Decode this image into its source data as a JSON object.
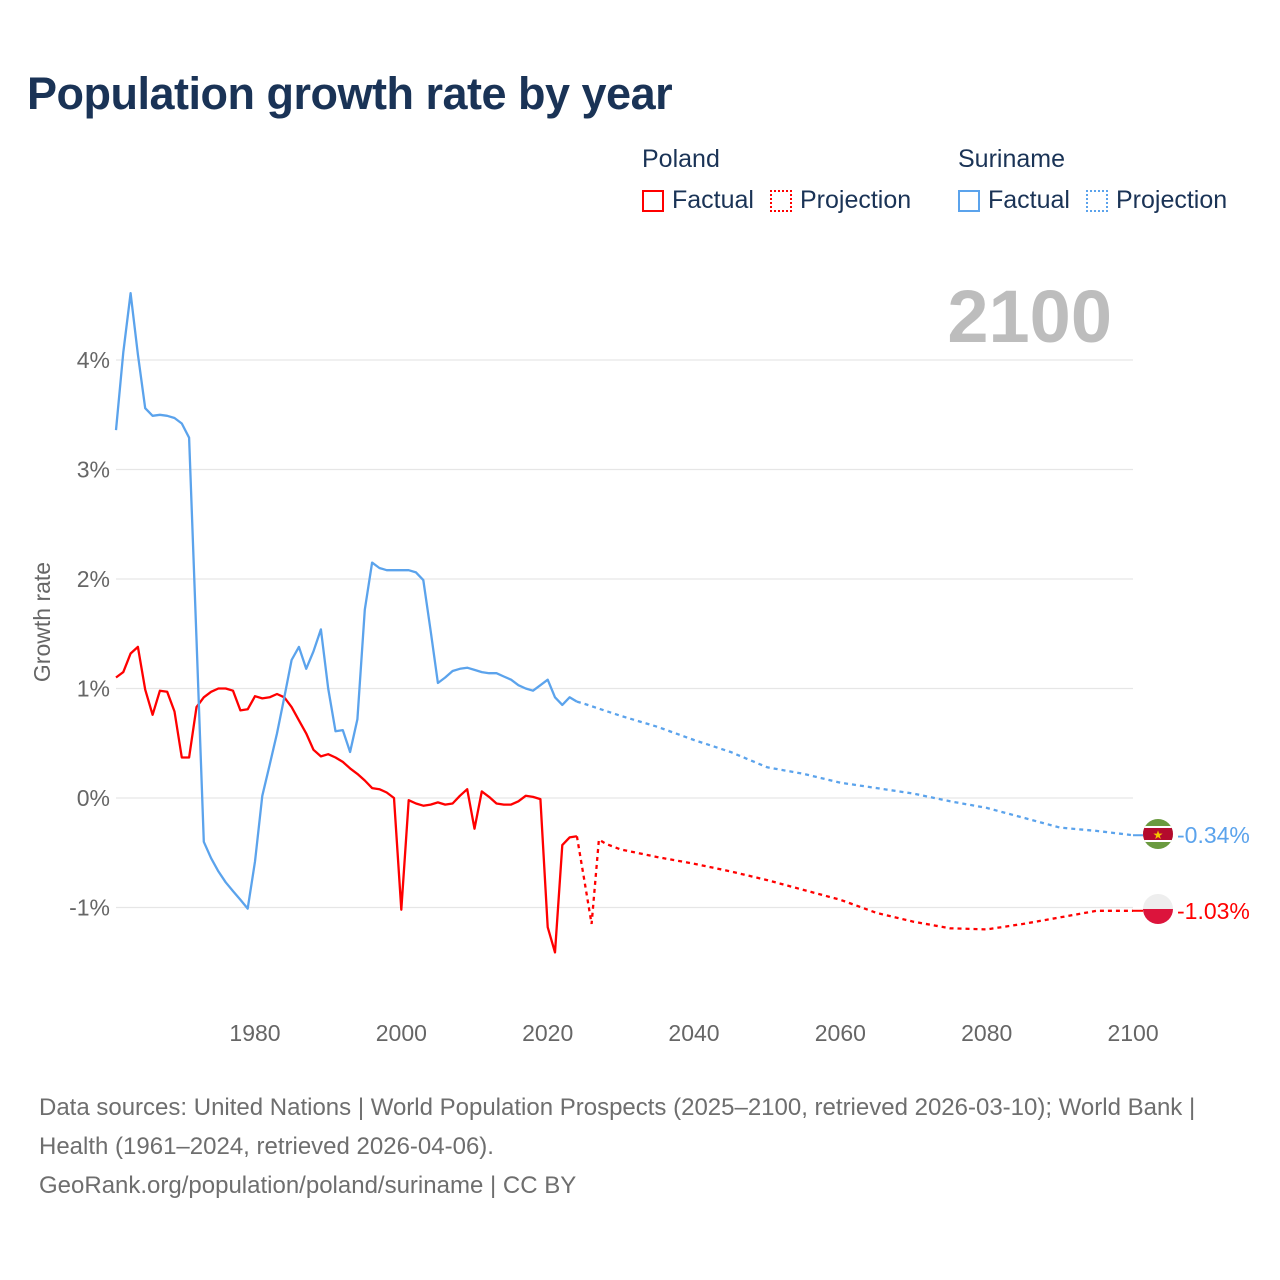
{
  "title": "Population growth rate by year",
  "legend": {
    "groups": [
      {
        "name": "Poland",
        "color": "#ff0000",
        "items": [
          "Factual",
          "Projection"
        ]
      },
      {
        "name": "Suriname",
        "color": "#5ba3ec",
        "items": [
          "Factual",
          "Projection"
        ]
      }
    ]
  },
  "year_label": "2100",
  "footer": {
    "sources": "Data sources: United Nations | World Population Prospects (2025–2100, retrieved 2026-03-10); World Bank | Health (1961–2024, retrieved 2026-04-06).",
    "credit": "GeoRank.org/population/poland/suriname | CC BY"
  },
  "chart_data": {
    "type": "line",
    "title": "Population growth rate by year",
    "xlabel": "",
    "ylabel": "Growth rate",
    "xlim": [
      1961,
      2100
    ],
    "ylim": [
      -1.6,
      4.7
    ],
    "x_ticks": [
      1980,
      2000,
      2020,
      2040,
      2060,
      2080,
      2100
    ],
    "y_ticks": [
      -1,
      0,
      1,
      2,
      3,
      4
    ],
    "y_tick_labels": [
      "-1%",
      "0%",
      "1%",
      "2%",
      "3%",
      "4%"
    ],
    "grid": true,
    "legend_position": "top-right",
    "series": [
      {
        "name": "Poland",
        "color": "#ff0000",
        "end_label": "-1.03%",
        "factual": {
          "x": [
            1961,
            1962,
            1963,
            1964,
            1965,
            1966,
            1967,
            1968,
            1969,
            1970,
            1971,
            1972,
            1973,
            1974,
            1975,
            1976,
            1977,
            1978,
            1979,
            1980,
            1981,
            1982,
            1983,
            1984,
            1985,
            1986,
            1987,
            1988,
            1989,
            1990,
            1991,
            1992,
            1993,
            1994,
            1995,
            1996,
            1997,
            1998,
            1999,
            2000,
            2001,
            2002,
            2003,
            2004,
            2005,
            2006,
            2007,
            2008,
            2009,
            2010,
            2011,
            2012,
            2013,
            2014,
            2015,
            2016,
            2017,
            2018,
            2019,
            2020,
            2021,
            2022,
            2023,
            2024
          ],
          "y": [
            1.1,
            1.15,
            1.32,
            1.38,
            0.99,
            0.76,
            0.98,
            0.97,
            0.79,
            0.37,
            0.37,
            0.83,
            0.92,
            0.97,
            1.0,
            1.0,
            0.98,
            0.8,
            0.81,
            0.93,
            0.91,
            0.92,
            0.95,
            0.92,
            0.83,
            0.71,
            0.59,
            0.44,
            0.38,
            0.4,
            0.37,
            0.33,
            0.27,
            0.22,
            0.16,
            0.09,
            0.08,
            0.05,
            0.0,
            -1.02,
            -0.02,
            -0.05,
            -0.07,
            -0.06,
            -0.04,
            -0.06,
            -0.05,
            0.02,
            0.08,
            -0.28,
            0.06,
            0.01,
            -0.05,
            -0.06,
            -0.06,
            -0.03,
            0.02,
            0.01,
            -0.01,
            -1.18,
            -1.41,
            -0.43,
            -0.36,
            -0.35
          ]
        },
        "projection": {
          "x": [
            2024,
            2025,
            2026,
            2027,
            2028,
            2030,
            2035,
            2040,
            2045,
            2050,
            2055,
            2060,
            2065,
            2070,
            2075,
            2080,
            2085,
            2090,
            2095,
            2100
          ],
          "y": [
            -0.35,
            -0.75,
            -1.15,
            -0.38,
            -0.42,
            -0.47,
            -0.54,
            -0.6,
            -0.67,
            -0.75,
            -0.84,
            -0.93,
            -1.05,
            -1.13,
            -1.19,
            -1.2,
            -1.15,
            -1.09,
            -1.03,
            -1.03
          ]
        }
      },
      {
        "name": "Suriname",
        "color": "#5ba3ec",
        "end_label": "-0.34%",
        "factual": {
          "x": [
            1961,
            1962,
            1963,
            1964,
            1965,
            1966,
            1967,
            1968,
            1969,
            1970,
            1971,
            1972,
            1973,
            1974,
            1975,
            1976,
            1977,
            1978,
            1979,
            1980,
            1981,
            1982,
            1983,
            1984,
            1985,
            1986,
            1987,
            1988,
            1989,
            1990,
            1991,
            1992,
            1993,
            1994,
            1995,
            1996,
            1997,
            1998,
            1999,
            2000,
            2001,
            2002,
            2003,
            2004,
            2005,
            2006,
            2007,
            2008,
            2009,
            2010,
            2011,
            2012,
            2013,
            2014,
            2015,
            2016,
            2017,
            2018,
            2019,
            2020,
            2021,
            2022,
            2023,
            2024
          ],
          "y": [
            3.36,
            4.07,
            4.61,
            4.05,
            3.56,
            3.49,
            3.5,
            3.49,
            3.47,
            3.42,
            3.29,
            1.45,
            -0.4,
            -0.55,
            -0.67,
            -0.77,
            -0.85,
            -0.93,
            -1.01,
            -0.58,
            0.02,
            0.3,
            0.59,
            0.92,
            1.26,
            1.38,
            1.18,
            1.34,
            1.54,
            1.0,
            0.61,
            0.62,
            0.42,
            0.72,
            1.72,
            2.15,
            2.1,
            2.08,
            2.08,
            2.08,
            2.08,
            2.06,
            1.99,
            1.53,
            1.05,
            1.1,
            1.16,
            1.18,
            1.19,
            1.17,
            1.15,
            1.14,
            1.14,
            1.11,
            1.08,
            1.03,
            1.0,
            0.98,
            1.03,
            1.08,
            0.92,
            0.85,
            0.92,
            0.88
          ]
        },
        "projection": {
          "x": [
            2024,
            2025,
            2030,
            2035,
            2040,
            2045,
            2050,
            2055,
            2060,
            2065,
            2070,
            2075,
            2080,
            2085,
            2090,
            2095,
            2100
          ],
          "y": [
            0.88,
            0.86,
            0.75,
            0.65,
            0.53,
            0.42,
            0.28,
            0.22,
            0.14,
            0.09,
            0.04,
            -0.03,
            -0.09,
            -0.18,
            -0.27,
            -0.3,
            -0.34
          ]
        }
      }
    ]
  }
}
